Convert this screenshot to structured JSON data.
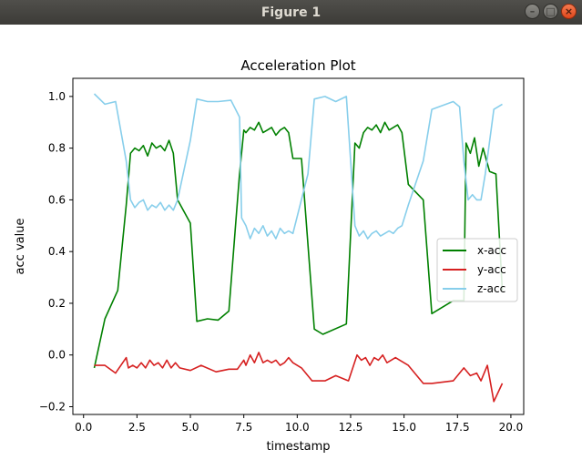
{
  "window": {
    "title": "Figure 1",
    "minimize_glyph": "–",
    "maximize_glyph": "□",
    "close_glyph": "×"
  },
  "chart_data": {
    "type": "line",
    "title": "Acceleration Plot",
    "xlabel": "timestamp",
    "ylabel": "acc value",
    "xlim": [
      -0.5,
      20.6
    ],
    "ylim": [
      -0.23,
      1.07
    ],
    "xticks": [
      0.0,
      2.5,
      5.0,
      7.5,
      10.0,
      12.5,
      15.0,
      17.5,
      20.0
    ],
    "xtick_labels": [
      "0.0",
      "2.5",
      "5.0",
      "7.5",
      "10.0",
      "12.5",
      "15.0",
      "17.5",
      "20.0"
    ],
    "yticks": [
      -0.2,
      0.0,
      0.2,
      0.4,
      0.6,
      0.8,
      1.0
    ],
    "ytick_labels": [
      "−0.2",
      "0.0",
      "0.2",
      "0.4",
      "0.6",
      "0.8",
      "1.0"
    ],
    "grid": false,
    "legend_position": "center-right",
    "series": [
      {
        "name": "x-acc",
        "color": "#008000",
        "x": [
          0.5,
          1.0,
          1.6,
          2.0,
          2.2,
          2.4,
          2.6,
          2.8,
          3.0,
          3.2,
          3.4,
          3.6,
          3.8,
          4.0,
          4.2,
          4.4,
          5.0,
          5.3,
          5.8,
          6.3,
          6.8,
          7.3,
          7.5,
          7.6,
          7.8,
          8.0,
          8.2,
          8.4,
          8.6,
          8.8,
          9.0,
          9.2,
          9.4,
          9.6,
          9.8,
          10.2,
          10.8,
          11.2,
          12.3,
          12.7,
          12.9,
          13.1,
          13.3,
          13.5,
          13.7,
          13.9,
          14.1,
          14.3,
          14.5,
          14.7,
          14.9,
          15.2,
          15.9,
          16.3,
          17.3,
          17.8,
          17.9,
          18.1,
          18.3,
          18.5,
          18.7,
          19.0,
          19.3,
          19.6
        ],
        "y": [
          -0.05,
          0.14,
          0.25,
          0.58,
          0.78,
          0.8,
          0.79,
          0.81,
          0.77,
          0.82,
          0.8,
          0.81,
          0.79,
          0.83,
          0.78,
          0.6,
          0.51,
          0.13,
          0.14,
          0.135,
          0.17,
          0.7,
          0.87,
          0.86,
          0.88,
          0.87,
          0.9,
          0.86,
          0.87,
          0.88,
          0.85,
          0.87,
          0.88,
          0.86,
          0.76,
          0.76,
          0.1,
          0.08,
          0.12,
          0.82,
          0.8,
          0.86,
          0.88,
          0.87,
          0.89,
          0.86,
          0.9,
          0.87,
          0.88,
          0.89,
          0.86,
          0.66,
          0.6,
          0.16,
          0.21,
          0.21,
          0.82,
          0.78,
          0.84,
          0.73,
          0.8,
          0.71,
          0.7,
          0.25
        ]
      },
      {
        "name": "y-acc",
        "color": "#d62020",
        "x": [
          0.5,
          1.0,
          1.5,
          2.0,
          2.1,
          2.3,
          2.5,
          2.7,
          2.9,
          3.1,
          3.3,
          3.5,
          3.7,
          3.9,
          4.1,
          4.3,
          4.5,
          5.0,
          5.5,
          6.2,
          6.8,
          7.2,
          7.5,
          7.6,
          7.8,
          8.0,
          8.2,
          8.4,
          8.6,
          8.8,
          9.0,
          9.2,
          9.4,
          9.6,
          9.8,
          10.2,
          10.7,
          11.3,
          11.8,
          12.4,
          12.8,
          13.0,
          13.2,
          13.4,
          13.6,
          13.8,
          14.0,
          14.2,
          14.4,
          14.6,
          14.8,
          15.2,
          15.9,
          16.3,
          17.3,
          17.8,
          18.1,
          18.4,
          18.6,
          18.9,
          19.2,
          19.6
        ],
        "y": [
          -0.04,
          -0.04,
          -0.07,
          -0.01,
          -0.05,
          -0.04,
          -0.05,
          -0.03,
          -0.05,
          -0.02,
          -0.04,
          -0.03,
          -0.05,
          -0.02,
          -0.05,
          -0.03,
          -0.05,
          -0.06,
          -0.04,
          -0.065,
          -0.055,
          -0.055,
          -0.02,
          -0.04,
          0.0,
          -0.03,
          0.01,
          -0.03,
          -0.02,
          -0.03,
          -0.02,
          -0.04,
          -0.03,
          -0.01,
          -0.03,
          -0.05,
          -0.1,
          -0.1,
          -0.08,
          -0.1,
          0.0,
          -0.02,
          -0.01,
          -0.04,
          -0.01,
          -0.02,
          0.0,
          -0.03,
          -0.02,
          -0.01,
          -0.02,
          -0.04,
          -0.11,
          -0.11,
          -0.1,
          -0.05,
          -0.08,
          -0.07,
          -0.1,
          -0.04,
          -0.18,
          -0.11
        ]
      },
      {
        "name": "z-acc",
        "color": "#87ceeb",
        "x": [
          0.5,
          1.0,
          1.5,
          2.0,
          2.2,
          2.4,
          2.6,
          2.8,
          3.0,
          3.2,
          3.4,
          3.6,
          3.8,
          4.0,
          4.2,
          4.4,
          5.0,
          5.3,
          5.8,
          6.3,
          6.9,
          7.3,
          7.4,
          7.6,
          7.8,
          8.0,
          8.2,
          8.4,
          8.6,
          8.8,
          9.0,
          9.2,
          9.4,
          9.6,
          9.8,
          10.5,
          10.8,
          11.3,
          11.8,
          12.3,
          12.7,
          12.9,
          13.1,
          13.3,
          13.5,
          13.7,
          13.9,
          14.1,
          14.3,
          14.5,
          14.7,
          14.9,
          15.2,
          15.9,
          16.3,
          17.3,
          17.6,
          17.8,
          18.0,
          18.2,
          18.4,
          18.6,
          18.8,
          19.2,
          19.6
        ],
        "y": [
          1.01,
          0.97,
          0.98,
          0.75,
          0.6,
          0.57,
          0.59,
          0.6,
          0.56,
          0.58,
          0.57,
          0.59,
          0.56,
          0.58,
          0.56,
          0.6,
          0.83,
          0.99,
          0.98,
          0.98,
          0.985,
          0.92,
          0.53,
          0.5,
          0.45,
          0.49,
          0.47,
          0.5,
          0.46,
          0.48,
          0.45,
          0.49,
          0.47,
          0.48,
          0.47,
          0.7,
          0.99,
          1.0,
          0.98,
          1.0,
          0.5,
          0.46,
          0.48,
          0.45,
          0.47,
          0.48,
          0.46,
          0.47,
          0.48,
          0.47,
          0.49,
          0.5,
          0.58,
          0.75,
          0.95,
          0.98,
          0.96,
          0.75,
          0.6,
          0.62,
          0.6,
          0.6,
          0.7,
          0.95,
          0.97
        ]
      }
    ]
  }
}
